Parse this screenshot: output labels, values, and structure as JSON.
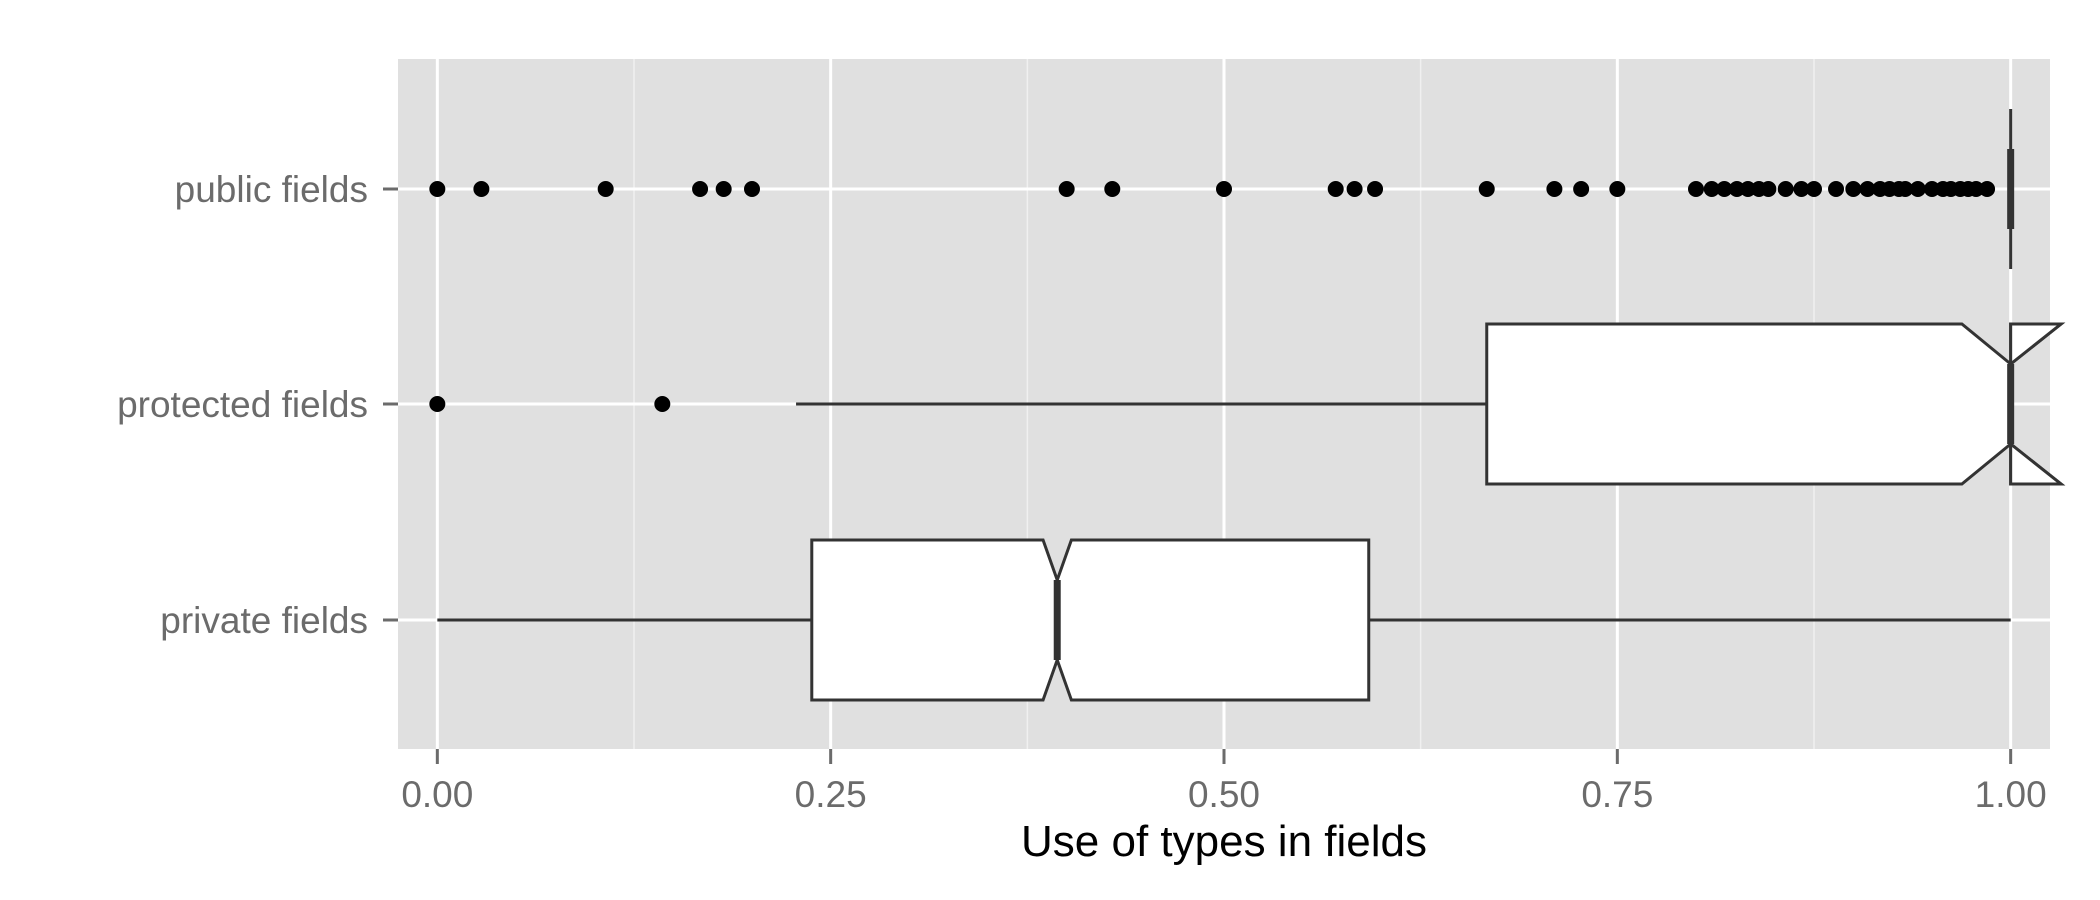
{
  "chart_data": {
    "type": "boxplot",
    "orientation": "horizontal",
    "title": "",
    "xlabel": "Use of types in fields",
    "ylabel": "",
    "xlim": [
      -0.025,
      1.025
    ],
    "x_ticks": [
      0.0,
      0.25,
      0.5,
      0.75,
      1.0
    ],
    "x_tick_labels": [
      "0.00",
      "0.25",
      "0.50",
      "0.75",
      "1.00"
    ],
    "notched": true,
    "grid": true,
    "background": "#e0e0e0",
    "categories": [
      "public fields",
      "protected fields",
      "private fields"
    ],
    "boxes": [
      {
        "category": "public fields",
        "q1": 1.0,
        "median": 1.0,
        "q3": 1.0,
        "whisker_low": 1.0,
        "whisker_high": 1.0,
        "notch_low": 1.0,
        "notch_high": 1.0,
        "outliers": [
          0.0,
          0.028,
          0.107,
          0.167,
          0.182,
          0.2,
          0.4,
          0.429,
          0.5,
          0.571,
          0.583,
          0.596,
          0.667,
          0.71,
          0.727,
          0.75,
          0.8,
          0.81,
          0.818,
          0.826,
          0.833,
          0.84,
          0.846,
          0.857,
          0.867,
          0.875,
          0.889,
          0.9,
          0.909,
          0.917,
          0.923,
          0.929,
          0.933,
          0.941,
          0.95,
          0.957,
          0.962,
          0.968,
          0.973,
          0.978,
          0.985
        ]
      },
      {
        "category": "protected fields",
        "q1": 0.667,
        "median": 1.0,
        "q3": 1.0,
        "whisker_low": 0.228,
        "whisker_high": 1.0,
        "notch_low": 0.969,
        "notch_high": 1.032,
        "outliers": [
          0.0,
          0.143
        ]
      },
      {
        "category": "private fields",
        "q1": 0.238,
        "median": 0.394,
        "q3": 0.592,
        "whisker_low": 0.0,
        "whisker_high": 1.0,
        "notch_low": 0.385,
        "notch_high": 0.403,
        "outliers": []
      }
    ]
  }
}
